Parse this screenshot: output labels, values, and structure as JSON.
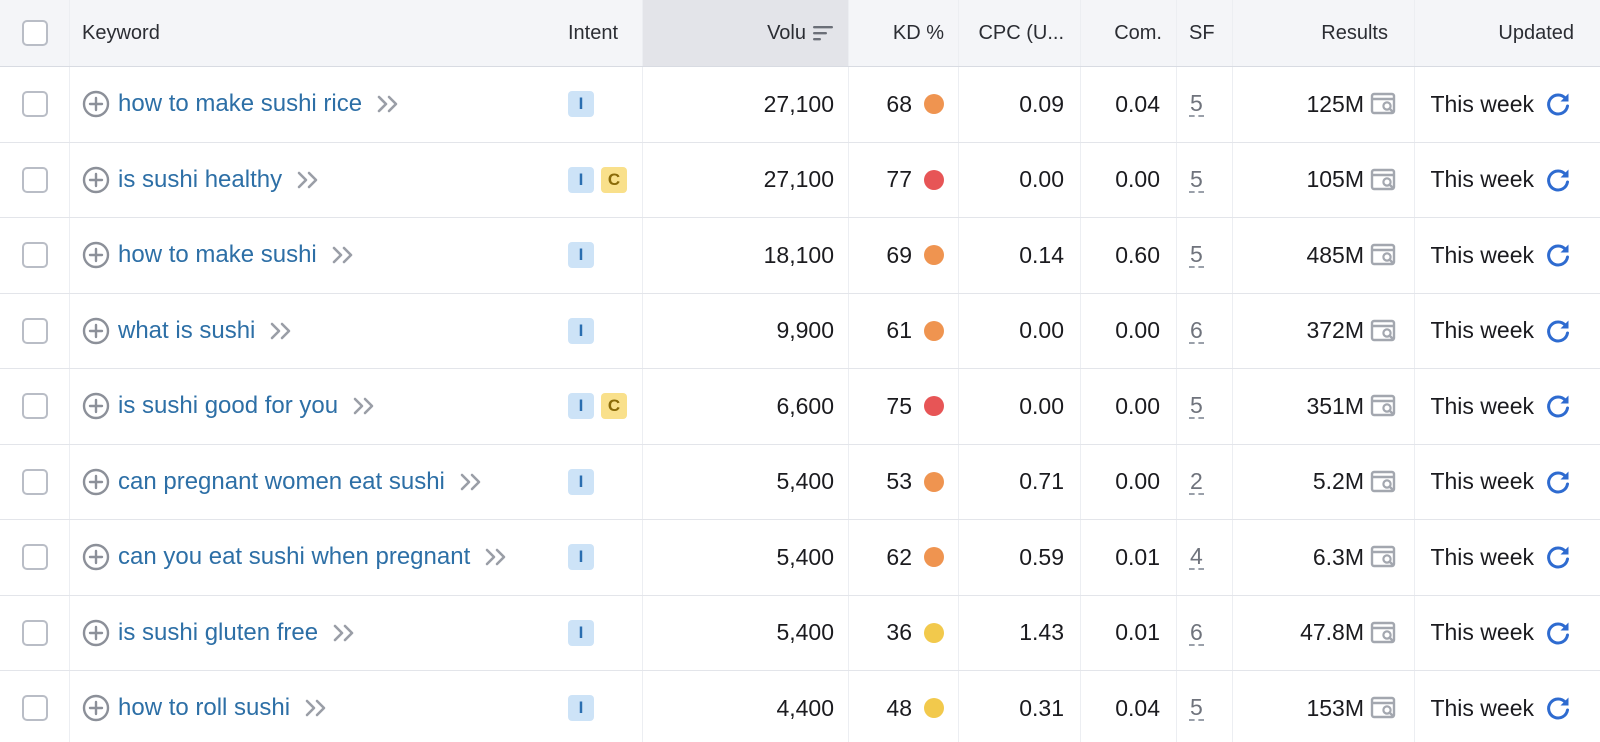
{
  "header": {
    "keyword": "Keyword",
    "intent": "Intent",
    "volume": "Volu",
    "kd": "KD %",
    "cpc": "CPC (U...",
    "com": "Com.",
    "sf": "SF",
    "results": "Results",
    "updated": "Updated"
  },
  "colors": {
    "kd_orange": "#ef9450",
    "kd_red": "#e75556",
    "kd_yellow": "#f2c94c",
    "link": "#2d6fa6",
    "refresh": "#2e6bd0"
  },
  "rows": [
    {
      "keyword": "how to make sushi rice",
      "intents": [
        "I"
      ],
      "volume": "27,100",
      "kd": "68",
      "kd_level": "orange",
      "cpc": "0.09",
      "com": "0.04",
      "sf": "5",
      "results": "125M",
      "updated": "This week"
    },
    {
      "keyword": "is sushi healthy",
      "intents": [
        "I",
        "C"
      ],
      "volume": "27,100",
      "kd": "77",
      "kd_level": "red",
      "cpc": "0.00",
      "com": "0.00",
      "sf": "5",
      "results": "105M",
      "updated": "This week"
    },
    {
      "keyword": "how to make sushi",
      "intents": [
        "I"
      ],
      "volume": "18,100",
      "kd": "69",
      "kd_level": "orange",
      "cpc": "0.14",
      "com": "0.60",
      "sf": "5",
      "results": "485M",
      "updated": "This week"
    },
    {
      "keyword": "what is sushi",
      "intents": [
        "I"
      ],
      "volume": "9,900",
      "kd": "61",
      "kd_level": "orange",
      "cpc": "0.00",
      "com": "0.00",
      "sf": "6",
      "results": "372M",
      "updated": "This week"
    },
    {
      "keyword": "is sushi good for you",
      "intents": [
        "I",
        "C"
      ],
      "volume": "6,600",
      "kd": "75",
      "kd_level": "red",
      "cpc": "0.00",
      "com": "0.00",
      "sf": "5",
      "results": "351M",
      "updated": "This week"
    },
    {
      "keyword": "can pregnant women eat sushi",
      "intents": [
        "I"
      ],
      "volume": "5,400",
      "kd": "53",
      "kd_level": "orange",
      "cpc": "0.71",
      "com": "0.00",
      "sf": "2",
      "results": "5.2M",
      "updated": "This week"
    },
    {
      "keyword": "can you eat sushi when pregnant",
      "intents": [
        "I"
      ],
      "volume": "5,400",
      "kd": "62",
      "kd_level": "orange",
      "cpc": "0.59",
      "com": "0.01",
      "sf": "4",
      "results": "6.3M",
      "updated": "This week"
    },
    {
      "keyword": "is sushi gluten free",
      "intents": [
        "I"
      ],
      "volume": "5,400",
      "kd": "36",
      "kd_level": "yellow",
      "cpc": "1.43",
      "com": "0.01",
      "sf": "6",
      "results": "47.8M",
      "updated": "This week"
    },
    {
      "keyword": "how to roll sushi",
      "intents": [
        "I"
      ],
      "volume": "4,400",
      "kd": "48",
      "kd_level": "yellow",
      "cpc": "0.31",
      "com": "0.04",
      "sf": "5",
      "results": "153M",
      "updated": "This week"
    }
  ]
}
